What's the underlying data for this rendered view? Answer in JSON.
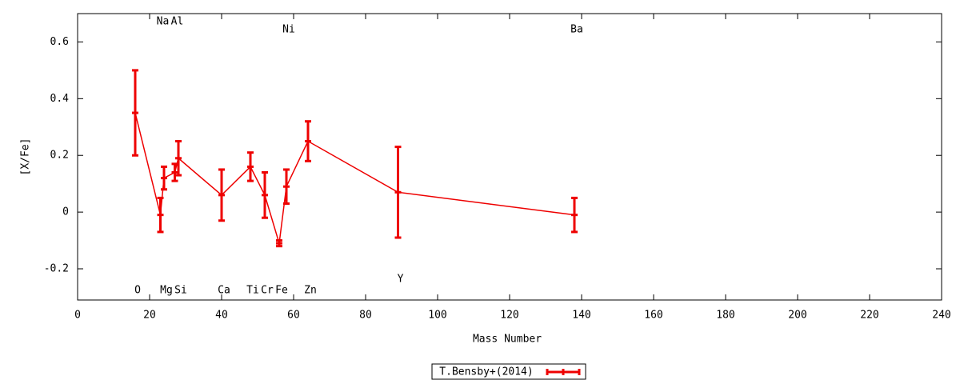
{
  "chart_data": {
    "type": "line",
    "xlabel": "Mass Number",
    "ylabel": "[X/Fe]",
    "xlim": [
      0,
      240
    ],
    "ylim": [
      -0.31,
      0.7
    ],
    "xticks": [
      0,
      20,
      40,
      60,
      80,
      100,
      120,
      140,
      160,
      180,
      200,
      220,
      240
    ],
    "yticks": [
      -0.2,
      0,
      0.2,
      0.4,
      0.6
    ],
    "legend": "bottom",
    "series": [
      {
        "name": "T.Bensby+(2014)",
        "color": "#ee0000",
        "labels": [
          "O",
          "Na",
          "Mg",
          "Al",
          "Si",
          "Ca",
          "Ti",
          "Cr",
          "Fe",
          "Ni",
          "Zn",
          "Y",
          "Ba"
        ],
        "x": [
          16,
          23,
          24,
          27,
          28,
          40,
          48,
          52,
          56,
          58,
          64,
          89,
          138
        ],
        "values": [
          0.35,
          -0.01,
          0.12,
          0.14,
          0.19,
          0.06,
          0.16,
          0.06,
          -0.11,
          0.09,
          0.25,
          0.07,
          -0.01
        ],
        "errors": [
          0.15,
          0.06,
          0.04,
          0.03,
          0.06,
          0.09,
          0.05,
          0.08,
          0.01,
          0.06,
          0.07,
          0.16,
          0.06
        ]
      }
    ]
  }
}
